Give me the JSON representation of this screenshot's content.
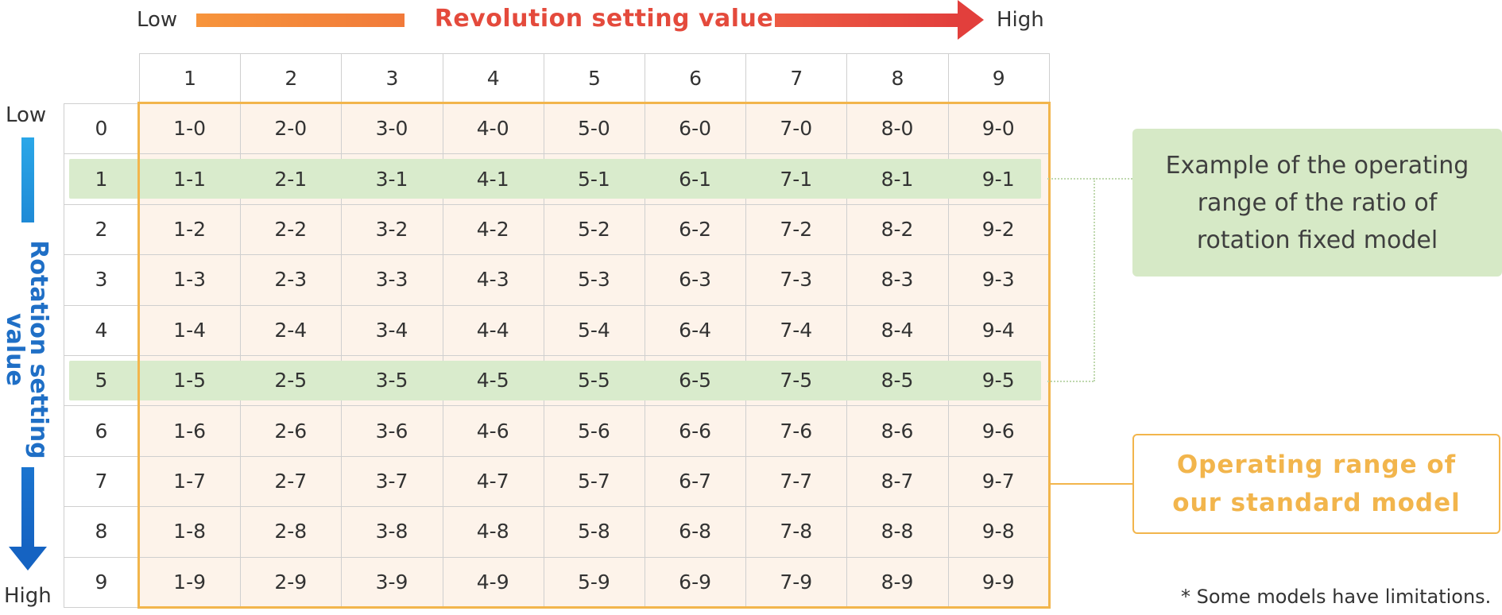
{
  "top_axis": {
    "low": "Low",
    "title": "Revolution setting value",
    "high": "High"
  },
  "left_axis": {
    "low": "Low",
    "title_line1": "Rotation setting",
    "title_line2": "value",
    "high": "High"
  },
  "table": {
    "column_headers": [
      "1",
      "2",
      "3",
      "4",
      "5",
      "6",
      "7",
      "8",
      "9"
    ],
    "row_headers": [
      "0",
      "1",
      "2",
      "3",
      "4",
      "5",
      "6",
      "7",
      "8",
      "9"
    ],
    "highlighted_rows": [
      "1",
      "5"
    ],
    "cells": [
      [
        "1-0",
        "2-0",
        "3-0",
        "4-0",
        "5-0",
        "6-0",
        "7-0",
        "8-0",
        "9-0"
      ],
      [
        "1-1",
        "2-1",
        "3-1",
        "4-1",
        "5-1",
        "6-1",
        "7-1",
        "8-1",
        "9-1"
      ],
      [
        "1-2",
        "2-2",
        "3-2",
        "4-2",
        "5-2",
        "6-2",
        "7-2",
        "8-2",
        "9-2"
      ],
      [
        "1-3",
        "2-3",
        "3-3",
        "4-3",
        "5-3",
        "6-3",
        "7-3",
        "8-3",
        "9-3"
      ],
      [
        "1-4",
        "2-4",
        "3-4",
        "4-4",
        "5-4",
        "6-4",
        "7-4",
        "8-4",
        "9-4"
      ],
      [
        "1-5",
        "2-5",
        "3-5",
        "4-5",
        "5-5",
        "6-5",
        "7-5",
        "8-5",
        "9-5"
      ],
      [
        "1-6",
        "2-6",
        "3-6",
        "4-6",
        "5-6",
        "6-6",
        "7-6",
        "8-6",
        "9-6"
      ],
      [
        "1-7",
        "2-7",
        "3-7",
        "4-7",
        "5-7",
        "6-7",
        "7-7",
        "8-7",
        "9-7"
      ],
      [
        "1-8",
        "2-8",
        "3-8",
        "4-8",
        "5-8",
        "6-8",
        "7-8",
        "8-8",
        "9-8"
      ],
      [
        "1-9",
        "2-9",
        "3-9",
        "4-9",
        "5-9",
        "6-9",
        "7-9",
        "8-9",
        "9-9"
      ]
    ]
  },
  "callouts": {
    "ratio_fixed_line1": "Example of the operating",
    "ratio_fixed_line2": "range of the ratio of",
    "ratio_fixed_line3": "rotation fixed model",
    "standard_line1": "Operating range of",
    "standard_line2": "our standard model"
  },
  "footnote": "* Some models have limitations.",
  "colors": {
    "revolution_title": "#e44a3c",
    "rotation_title": "#1f6fc6",
    "highlight_green": "#d9ebcc",
    "standard_orange": "#f2b54c",
    "cell_fill": "#fdf3ea"
  }
}
